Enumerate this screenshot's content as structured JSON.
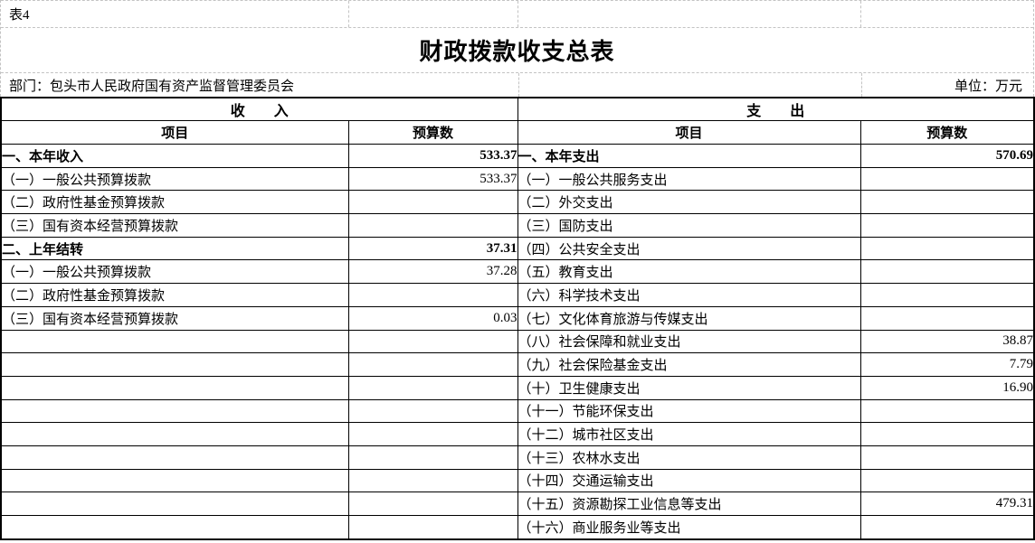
{
  "meta": {
    "table_number": "表4",
    "title": "财政拨款收支总表",
    "department_line": "部门：包头市人民政府国有资产监督管理委员会",
    "unit_label": "单位：万元"
  },
  "colors": {
    "text": "#000000",
    "table_border": "#000000",
    "gridline": "#c3c3c3",
    "background": "#ffffff"
  },
  "table": {
    "income": {
      "section_header": "收　　入",
      "col_item": "项目",
      "col_value": "预算数",
      "rows": [
        {
          "label": "一、本年收入",
          "value": "533.37",
          "bold": true
        },
        {
          "label": "（一）一般公共预算拨款",
          "value": "533.37",
          "bold": false
        },
        {
          "label": "（二）政府性基金预算拨款",
          "value": "",
          "bold": false
        },
        {
          "label": "（三）国有资本经营预算拨款",
          "value": "",
          "bold": false
        },
        {
          "label": "二、上年结转",
          "value": "37.31",
          "bold": true
        },
        {
          "label": "（一）一般公共预算拨款",
          "value": "37.28",
          "bold": false
        },
        {
          "label": "（二）政府性基金预算拨款",
          "value": "",
          "bold": false
        },
        {
          "label": "（三）国有资本经营预算拨款",
          "value": "0.03",
          "bold": false
        },
        {
          "label": "",
          "value": "",
          "bold": false
        },
        {
          "label": "",
          "value": "",
          "bold": false
        },
        {
          "label": "",
          "value": "",
          "bold": false
        },
        {
          "label": "",
          "value": "",
          "bold": false
        },
        {
          "label": "",
          "value": "",
          "bold": false
        },
        {
          "label": "",
          "value": "",
          "bold": false
        },
        {
          "label": "",
          "value": "",
          "bold": false
        },
        {
          "label": "",
          "value": "",
          "bold": false
        },
        {
          "label": "",
          "value": "",
          "bold": false
        }
      ]
    },
    "expense": {
      "section_header": "支　　出",
      "col_item": "项目",
      "col_value": "预算数",
      "rows": [
        {
          "label": "一、本年支出",
          "value": "570.69",
          "bold": true
        },
        {
          "label": "（一）一般公共服务支出",
          "value": "",
          "bold": false
        },
        {
          "label": "（二）外交支出",
          "value": "",
          "bold": false
        },
        {
          "label": "（三）国防支出",
          "value": "",
          "bold": false
        },
        {
          "label": "（四）公共安全支出",
          "value": "",
          "bold": false
        },
        {
          "label": "（五）教育支出",
          "value": "",
          "bold": false
        },
        {
          "label": "（六）科学技术支出",
          "value": "",
          "bold": false
        },
        {
          "label": "（七）文化体育旅游与传媒支出",
          "value": "",
          "bold": false
        },
        {
          "label": "（八）社会保障和就业支出",
          "value": "38.87",
          "bold": false
        },
        {
          "label": "（九）社会保险基金支出",
          "value": "7.79",
          "bold": false
        },
        {
          "label": "（十）卫生健康支出",
          "value": "16.90",
          "bold": false
        },
        {
          "label": "（十一）节能环保支出",
          "value": "",
          "bold": false
        },
        {
          "label": "（十二）城市社区支出",
          "value": "",
          "bold": false
        },
        {
          "label": "（十三）农林水支出",
          "value": "",
          "bold": false
        },
        {
          "label": "（十四）交通运输支出",
          "value": "",
          "bold": false
        },
        {
          "label": "（十五）资源勘探工业信息等支出",
          "value": "479.31",
          "bold": false
        },
        {
          "label": "（十六）商业服务业等支出",
          "value": "",
          "bold": false
        }
      ]
    }
  }
}
